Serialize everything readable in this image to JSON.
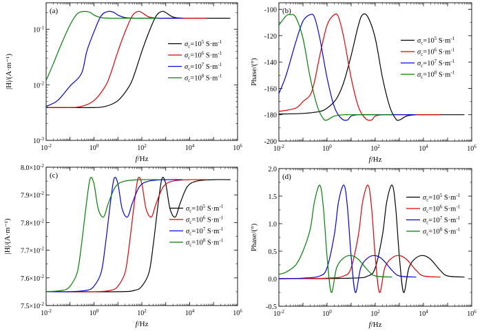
{
  "chart_data": [
    {
      "id": "a",
      "type": "line",
      "panel_label": "(a)",
      "xlabel_italic": "f",
      "xlabel_rest": "/Hz",
      "ylabel": "|H|/(A·m⁻¹)",
      "xscale": "log",
      "yscale": "log",
      "xlim": [
        0.01,
        1000000
      ],
      "ylim": [
        0.001,
        0.3
      ],
      "x_ticks": [
        {
          "v": 0.01,
          "b": "10",
          "e": "-2"
        },
        {
          "v": 1,
          "b": "10",
          "e": "0"
        },
        {
          "v": 100,
          "b": "10",
          "e": "2"
        },
        {
          "v": 10000,
          "b": "10",
          "e": "4"
        },
        {
          "v": 1000000,
          "b": "10",
          "e": "6"
        }
      ],
      "y_ticks": [
        {
          "v": 0.001,
          "b": "10",
          "e": "-3"
        },
        {
          "v": 0.01,
          "b": "10",
          "e": "-2"
        },
        {
          "v": 0.1,
          "b": "10",
          "e": "-1"
        }
      ],
      "legend_position": "center-right",
      "series": [
        {
          "name": "σc=10⁵ S·m⁻¹",
          "symbol": "σ",
          "sub": "c",
          "mid": "=10",
          "sup": "5",
          "unit": " S·m",
          "usup": "-1",
          "color": "#000000",
          "x": [
            0.01,
            0.1,
            1,
            3,
            10,
            30,
            50,
            100,
            200,
            400,
            700,
            1000,
            2000,
            5000,
            10000,
            100000,
            500000
          ],
          "y": [
            0.0039,
            0.0039,
            0.0039,
            0.0041,
            0.0052,
            0.0095,
            0.016,
            0.04,
            0.09,
            0.175,
            0.21,
            0.2,
            0.166,
            0.158,
            0.158,
            0.158,
            0.158
          ]
        },
        {
          "name": "σc=10⁶ S·m⁻¹",
          "symbol": "σ",
          "sub": "c",
          "mid": "=10",
          "sup": "6",
          "unit": " S·m",
          "usup": "-1",
          "color": "#e00000",
          "x": [
            0.01,
            0.1,
            0.3,
            1,
            3,
            5,
            10,
            20,
            40,
            70,
            100,
            200,
            500,
            1000,
            10000,
            50000
          ],
          "y": [
            0.0039,
            0.0039,
            0.0041,
            0.0052,
            0.0095,
            0.016,
            0.04,
            0.09,
            0.175,
            0.21,
            0.2,
            0.166,
            0.158,
            0.158,
            0.158,
            0.158
          ]
        },
        {
          "name": "σc=10⁷ S·m⁻¹",
          "symbol": "σ",
          "sub": "c",
          "mid": "=10",
          "sup": "7",
          "unit": " S·m",
          "usup": "-1",
          "color": "#0000e0",
          "x": [
            0.01,
            0.03,
            0.1,
            0.3,
            0.5,
            1,
            2,
            4,
            7,
            10,
            20,
            50,
            100,
            1000,
            5000
          ],
          "y": [
            0.0041,
            0.0052,
            0.0095,
            0.016,
            0.04,
            0.09,
            0.175,
            0.21,
            0.2,
            0.18,
            0.162,
            0.158,
            0.158,
            0.158,
            0.158
          ]
        },
        {
          "name": "σc=10⁸ S·m⁻¹",
          "symbol": "σ",
          "sub": "c",
          "mid": "=10",
          "sup": "8",
          "unit": " S·m",
          "usup": "-1",
          "color": "#008000",
          "x": [
            0.01,
            0.02,
            0.04,
            0.1,
            0.2,
            0.4,
            0.7,
            1,
            2,
            5,
            10,
            100,
            500
          ],
          "y": [
            0.012,
            0.024,
            0.05,
            0.12,
            0.19,
            0.21,
            0.2,
            0.18,
            0.162,
            0.158,
            0.158,
            0.158,
            0.158
          ]
        }
      ]
    },
    {
      "id": "b",
      "type": "line",
      "panel_label": "(b)",
      "xlabel_italic": "f",
      "xlabel_rest": "/Hz",
      "ylabel": "Phase/(°)",
      "xscale": "log",
      "yscale": "linear",
      "xlim": [
        0.01,
        1000000
      ],
      "ylim": [
        -200,
        -95
      ],
      "x_ticks": [
        {
          "v": 0.01,
          "b": "10",
          "e": "-2"
        },
        {
          "v": 1,
          "b": "10",
          "e": "0"
        },
        {
          "v": 100,
          "b": "10",
          "e": "2"
        },
        {
          "v": 10000,
          "b": "10",
          "e": "4"
        },
        {
          "v": 1000000,
          "b": "10",
          "e": "6"
        }
      ],
      "y_ticks": [
        {
          "v": -200,
          "t": "-200"
        },
        {
          "v": -180,
          "t": "-180"
        },
        {
          "v": -160,
          "t": "-160"
        },
        {
          "v": -140,
          "t": "-140"
        },
        {
          "v": -120,
          "t": "-120"
        },
        {
          "v": -100,
          "t": "-100"
        }
      ],
      "legend_position": "top-right",
      "series": [
        {
          "name": "σc=10⁵ S·m⁻¹",
          "symbol": "σ",
          "sub": "c",
          "mid": "=10",
          "sup": "5",
          "unit": " S·m",
          "usup": "-1",
          "color": "#000000",
          "x": [
            0.01,
            0.1,
            0.5,
            1,
            2,
            3,
            5,
            10,
            20,
            30,
            50,
            100,
            200,
            400,
            700,
            1000,
            2000,
            5000,
            10000,
            100000,
            500000
          ],
          "y": [
            -179.5,
            -179,
            -177.5,
            -175,
            -170,
            -165,
            -155,
            -135,
            -112,
            -104,
            -106,
            -122,
            -152,
            -174,
            -183,
            -184,
            -181,
            -180,
            -180,
            -180,
            -180
          ]
        },
        {
          "name": "σc=10⁶ S·m⁻¹",
          "symbol": "σ",
          "sub": "c",
          "mid": "=10",
          "sup": "6",
          "unit": " S·m",
          "usup": "-1",
          "color": "#e00000",
          "x": [
            0.01,
            0.05,
            0.1,
            0.2,
            0.3,
            0.5,
            1,
            2,
            3,
            5,
            10,
            20,
            40,
            70,
            100,
            200,
            500,
            1000,
            10000,
            50000
          ],
          "y": [
            -177.5,
            -175,
            -170,
            -165,
            -155,
            -135,
            -112,
            -104,
            -106,
            -122,
            -152,
            -174,
            -183,
            -184,
            -181,
            -180,
            -180,
            -180,
            -180,
            -180
          ]
        },
        {
          "name": "σc=10⁷ S·m⁻¹",
          "symbol": "σ",
          "sub": "c",
          "mid": "=10",
          "sup": "7",
          "unit": " S·m",
          "usup": "-1",
          "color": "#0000e0",
          "x": [
            0.01,
            0.02,
            0.05,
            0.1,
            0.2,
            0.3,
            0.5,
            1,
            2,
            4,
            7,
            10,
            20,
            50,
            100,
            1000,
            5000
          ],
          "y": [
            -164,
            -150,
            -125,
            -109,
            -104,
            -106,
            -122,
            -152,
            -174,
            -183,
            -184,
            -181,
            -180,
            -180,
            -180,
            -180,
            -180
          ]
        },
        {
          "name": "σc=10⁸ S·m⁻¹",
          "symbol": "σ",
          "sub": "c",
          "mid": "=10",
          "sup": "8",
          "unit": " S·m",
          "usup": "-1",
          "color": "#008000",
          "x": [
            0.01,
            0.02,
            0.03,
            0.05,
            0.1,
            0.2,
            0.4,
            0.7,
            1,
            2,
            5,
            10,
            100,
            500
          ],
          "y": [
            -112,
            -105,
            -104,
            -106,
            -122,
            -152,
            -174,
            -183,
            -184,
            -181,
            -180,
            -180,
            -180,
            -180
          ]
        }
      ]
    },
    {
      "id": "c",
      "type": "line",
      "panel_label": "(c)",
      "xlabel_italic": "f",
      "xlabel_rest": "/Hz",
      "ylabel": "|H|/(A·m⁻¹)",
      "xscale": "log",
      "yscale": "linear",
      "xlim": [
        0.01,
        1000000
      ],
      "ylim": [
        0.075,
        0.08
      ],
      "x_ticks": [
        {
          "v": 0.01,
          "b": "10",
          "e": "-2"
        },
        {
          "v": 1,
          "b": "10",
          "e": "0"
        },
        {
          "v": 100,
          "b": "10",
          "e": "2"
        },
        {
          "v": 10000,
          "b": "10",
          "e": "4"
        },
        {
          "v": 1000000,
          "b": "10",
          "e": "6"
        }
      ],
      "y_ticks": [
        {
          "v": 0.075,
          "b": "7.5×10",
          "e": "-2"
        },
        {
          "v": 0.076,
          "b": "7.6×10",
          "e": "-2"
        },
        {
          "v": 0.077,
          "b": "7.7×10",
          "e": "-2"
        },
        {
          "v": 0.078,
          "b": "7.8×10",
          "e": "-2"
        },
        {
          "v": 0.079,
          "b": "7.9×10",
          "e": "-2"
        },
        {
          "v": 0.08,
          "b": "8.0×10",
          "e": "-2"
        }
      ],
      "legend_position": "center-right",
      "series": [
        {
          "name": "σc=10⁵ S·m⁻¹",
          "symbol": "σ",
          "sub": "c",
          "mid": "=10",
          "sup": "5",
          "unit": " S·m",
          "usup": "-1",
          "color": "#000000",
          "x": [
            0.01,
            10,
            50,
            100,
            200,
            300,
            500,
            700,
            1000,
            1500,
            2500,
            4000,
            8000,
            20000,
            100000,
            500000
          ],
          "y": [
            0.0755,
            0.0755,
            0.07555,
            0.0757,
            0.0762,
            0.0772,
            0.0788,
            0.0796,
            0.0794,
            0.0785,
            0.0782,
            0.0787,
            0.0793,
            0.0795,
            0.07955,
            0.07955
          ]
        },
        {
          "name": "σc=10⁶ S·m⁻¹",
          "symbol": "σ",
          "sub": "c",
          "mid": "=10",
          "sup": "6",
          "unit": " S·m",
          "usup": "-1",
          "color": "#e00000",
          "x": [
            0.01,
            1,
            5,
            10,
            20,
            30,
            50,
            70,
            100,
            150,
            250,
            400,
            800,
            2000,
            10000,
            50000
          ],
          "y": [
            0.0755,
            0.0755,
            0.07555,
            0.0757,
            0.0762,
            0.0772,
            0.0788,
            0.0796,
            0.0794,
            0.0785,
            0.0782,
            0.0787,
            0.0793,
            0.0795,
            0.07955,
            0.07955
          ]
        },
        {
          "name": "σc=10⁷ S·m⁻¹",
          "symbol": "σ",
          "sub": "c",
          "mid": "=10",
          "sup": "7",
          "unit": " S·m",
          "usup": "-1",
          "color": "#0000e0",
          "x": [
            0.01,
            0.1,
            0.5,
            1,
            2,
            3,
            5,
            7,
            10,
            15,
            25,
            40,
            80,
            200,
            1000,
            5000
          ],
          "y": [
            0.0755,
            0.0755,
            0.07555,
            0.0757,
            0.0762,
            0.0772,
            0.0788,
            0.0796,
            0.0794,
            0.0785,
            0.0782,
            0.0787,
            0.0793,
            0.0795,
            0.07955,
            0.07955
          ]
        },
        {
          "name": "σc=10⁸ S·m⁻¹",
          "symbol": "σ",
          "sub": "c",
          "mid": "=10",
          "sup": "8",
          "unit": " S·m",
          "usup": "-1",
          "color": "#008000",
          "x": [
            0.01,
            0.05,
            0.1,
            0.2,
            0.3,
            0.5,
            0.7,
            1,
            1.5,
            2.5,
            4,
            8,
            20,
            100,
            500
          ],
          "y": [
            0.0755,
            0.07555,
            0.0757,
            0.0762,
            0.0772,
            0.0788,
            0.0796,
            0.0794,
            0.0785,
            0.0782,
            0.0787,
            0.0793,
            0.0795,
            0.07955,
            0.07955
          ]
        }
      ]
    },
    {
      "id": "d",
      "type": "line",
      "panel_label": "(d)",
      "xlabel_italic": "f",
      "xlabel_rest": "/Hz",
      "ylabel": "Phase/(°)",
      "xscale": "log",
      "yscale": "linear",
      "xlim": [
        0.01,
        1000000
      ],
      "ylim": [
        -0.5,
        2.0
      ],
      "x_ticks": [
        {
          "v": 0.01,
          "b": "10",
          "e": "-2"
        },
        {
          "v": 1,
          "b": "10",
          "e": "0"
        },
        {
          "v": 100,
          "b": "10",
          "e": "2"
        },
        {
          "v": 10000,
          "b": "10",
          "e": "4"
        },
        {
          "v": 1000000,
          "b": "10",
          "e": "6"
        }
      ],
      "y_ticks": [
        {
          "v": -0.5,
          "t": "-0.5"
        },
        {
          "v": 0,
          "t": "0.0"
        },
        {
          "v": 0.5,
          "t": "0.5"
        },
        {
          "v": 1.0,
          "t": "1.0"
        },
        {
          "v": 1.5,
          "t": "1.5"
        },
        {
          "v": 2.0,
          "t": "2.0"
        }
      ],
      "legend_position": "top-right",
      "series": [
        {
          "name": "σc=10⁵ S·m⁻¹",
          "symbol": "σ",
          "sub": "c",
          "mid": "=10",
          "sup": "5",
          "unit": " S·m",
          "usup": "-1",
          "color": "#000000",
          "x": [
            0.01,
            10,
            50,
            100,
            200,
            300,
            500,
            700,
            1000,
            1500,
            2500,
            5000,
            10000,
            20000,
            50000,
            100000,
            500000
          ],
          "y": [
            0,
            0.01,
            0.05,
            0.2,
            0.8,
            1.4,
            1.7,
            1.3,
            0.4,
            -0.25,
            0.2,
            0.38,
            0.42,
            0.35,
            0.15,
            0.05,
            0.03
          ]
        },
        {
          "name": "σc=10⁶ S·m⁻¹",
          "symbol": "σ",
          "sub": "c",
          "mid": "=10",
          "sup": "6",
          "unit": " S·m",
          "usup": "-1",
          "color": "#e00000",
          "x": [
            0.01,
            1,
            5,
            10,
            20,
            30,
            50,
            70,
            100,
            150,
            250,
            500,
            1000,
            2000,
            5000,
            10000,
            50000
          ],
          "y": [
            0,
            0.01,
            0.05,
            0.2,
            0.8,
            1.4,
            1.7,
            1.3,
            0.4,
            -0.25,
            0.2,
            0.38,
            0.42,
            0.35,
            0.15,
            0.05,
            0.03
          ]
        },
        {
          "name": "σc=10⁷ S·m⁻¹",
          "symbol": "σ",
          "sub": "c",
          "mid": "=10",
          "sup": "7",
          "unit": " S·m",
          "usup": "-1",
          "color": "#0000e0",
          "x": [
            0.01,
            0.1,
            0.5,
            1,
            2,
            3,
            5,
            7,
            10,
            15,
            25,
            50,
            100,
            200,
            500,
            1000,
            5000
          ],
          "y": [
            0,
            0.01,
            0.05,
            0.2,
            0.8,
            1.4,
            1.7,
            1.3,
            0.4,
            -0.25,
            0.2,
            0.38,
            0.42,
            0.35,
            0.15,
            0.05,
            0.03
          ]
        },
        {
          "name": "σc=10⁸ S·m⁻¹",
          "symbol": "σ",
          "sub": "c",
          "mid": "=10",
          "sup": "8",
          "unit": " S·m",
          "usup": "-1",
          "color": "#008000",
          "x": [
            0.01,
            0.02,
            0.05,
            0.1,
            0.2,
            0.3,
            0.5,
            0.7,
            1,
            1.5,
            2.5,
            5,
            10,
            20,
            50,
            100,
            500
          ],
          "y": [
            0.08,
            0.12,
            0.25,
            0.5,
            0.9,
            1.4,
            1.7,
            1.3,
            0.4,
            -0.25,
            0.2,
            0.38,
            0.42,
            0.35,
            0.15,
            0.05,
            0.03
          ]
        }
      ]
    }
  ]
}
